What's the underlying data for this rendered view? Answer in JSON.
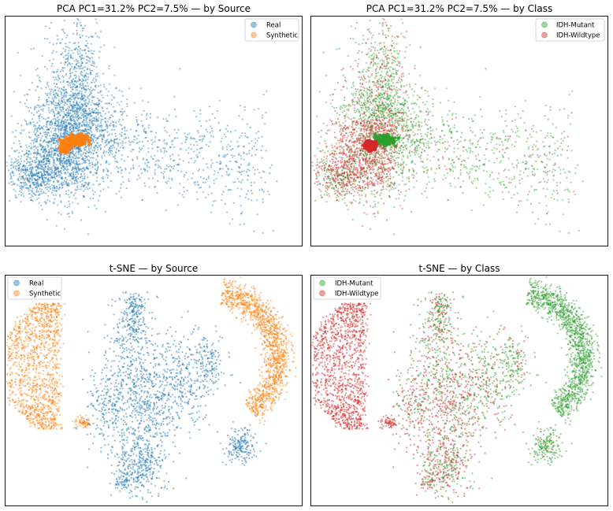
{
  "chart_data": [
    {
      "type": "scatter",
      "title": "PCA  PC1=31.2%  PC2=7.5% — by Source",
      "xlabel": "",
      "ylabel": "",
      "grid": false,
      "legend_position": "top-right",
      "series": [
        {
          "name": "Real",
          "color": "#1f77b4",
          "points": 6000
        },
        {
          "name": "Synthetic",
          "color": "#ff7f0e",
          "points": 4000
        }
      ]
    },
    {
      "type": "scatter",
      "title": "PCA  PC1=31.2%  PC2=7.5% — by Class",
      "xlabel": "",
      "ylabel": "",
      "grid": false,
      "legend_position": "top-right",
      "series": [
        {
          "name": "IDH-Mutant",
          "color": "#2ca02c"
        },
        {
          "name": "IDH-Wildtype",
          "color": "#d62728"
        }
      ]
    },
    {
      "type": "scatter",
      "title": "t-SNE — by Source",
      "xlabel": "",
      "ylabel": "",
      "grid": false,
      "legend_position": "top-left",
      "series": [
        {
          "name": "Real",
          "color": "#1f77b4"
        },
        {
          "name": "Synthetic",
          "color": "#ff7f0e"
        }
      ]
    },
    {
      "type": "scatter",
      "title": "t-SNE — by Class",
      "xlabel": "",
      "ylabel": "",
      "grid": false,
      "legend_position": "top-left",
      "series": [
        {
          "name": "IDH-Mutant",
          "color": "#2ca02c"
        },
        {
          "name": "IDH-Wildtype",
          "color": "#d62728"
        }
      ]
    }
  ]
}
